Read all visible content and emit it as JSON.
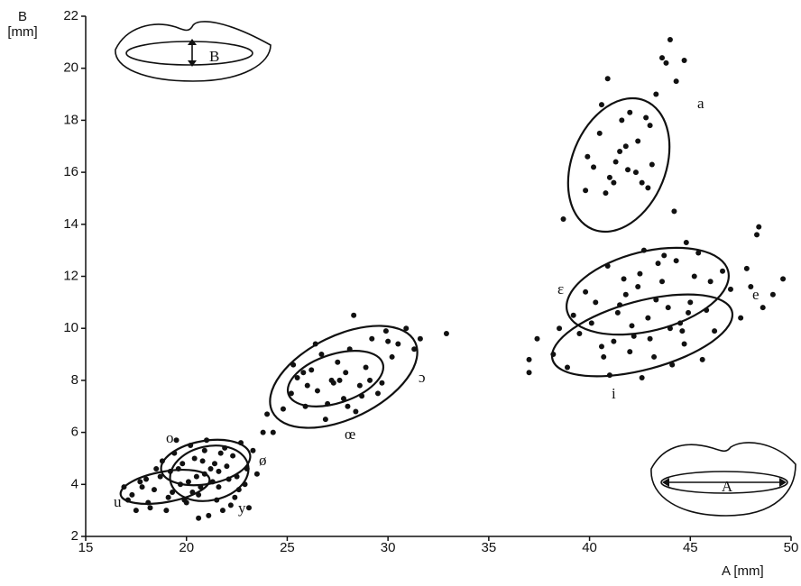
{
  "chart_data": {
    "type": "scatter",
    "xlabel": "A [mm]",
    "ylabel": "B [mm]",
    "color": "#111111",
    "xlim": [
      15,
      50
    ],
    "xticks": [
      15,
      20,
      25,
      30,
      35,
      40,
      45,
      50
    ],
    "ylim": [
      2,
      22
    ],
    "yticks": [
      2,
      4,
      6,
      8,
      10,
      12,
      14,
      16,
      18,
      20,
      22
    ],
    "annotations": [
      "a",
      "ε",
      "e",
      "i",
      "ɔ",
      "œ",
      "o",
      "ø",
      "u",
      "y",
      "B",
      "A"
    ],
    "x": [
      39.8,
      40.2,
      40.5,
      41.0,
      41.3,
      41.8,
      42.0,
      42.3,
      42.6,
      43.0,
      43.3,
      43.6,
      44.0,
      44.3,
      43.8,
      42.8,
      41.5,
      40.8,
      39.9,
      40.6,
      41.2,
      41.9,
      42.4,
      43.1,
      38.7,
      44.7,
      44.2,
      42.9,
      41.6,
      40.9,
      37.0,
      37.4,
      37.0,
      38.2,
      38.9,
      39.5,
      40.1,
      40.6,
      41.0,
      41.4,
      41.8,
      42.2,
      42.5,
      42.9,
      43.2,
      43.6,
      44.0,
      44.3,
      44.7,
      45.0,
      45.4,
      45.8,
      46.2,
      46.6,
      47.0,
      47.5,
      48.0,
      48.3,
      48.4,
      49.1,
      49.6,
      48.6,
      47.8,
      40.3,
      40.9,
      41.5,
      42.0,
      42.7,
      43.4,
      44.1,
      44.8,
      45.2,
      43.9,
      42.4,
      41.2,
      39.8,
      39.2,
      43.0,
      44.5,
      45.6,
      46.0,
      42.6,
      41.7,
      43.7,
      44.6,
      38.5,
      40.7,
      42.1,
      43.3,
      44.9,
      24.0,
      24.3,
      24.8,
      25.2,
      25.5,
      25.9,
      26.2,
      26.5,
      26.9,
      27.2,
      27.5,
      27.8,
      28.1,
      28.3,
      28.6,
      28.9,
      29.2,
      29.5,
      29.9,
      30.2,
      30.5,
      30.9,
      31.3,
      31.6,
      32.9,
      28.0,
      27.3,
      26.7,
      25.8,
      27.9,
      28.4,
      29.1,
      30.0,
      27.0,
      26.0,
      25.3,
      29.7,
      28.7,
      27.6,
      26.4,
      16.9,
      17.3,
      17.7,
      18.1,
      18.4,
      18.7,
      19.0,
      19.3,
      19.6,
      19.9,
      20.1,
      20.4,
      20.6,
      20.9,
      21.1,
      21.4,
      21.6,
      21.9,
      22.1,
      22.4,
      22.7,
      23.0,
      23.3,
      22.9,
      22.2,
      21.7,
      21.2,
      20.7,
      20.2,
      19.7,
      19.2,
      18.8,
      18.2,
      17.8,
      17.5,
      19.4,
      20.0,
      20.5,
      21.0,
      21.5,
      22.0,
      22.6,
      23.5,
      21.3,
      20.8,
      20.3,
      19.8,
      21.8,
      22.3,
      20.6,
      18.5,
      19.1,
      20.9,
      21.6,
      22.5,
      17.1,
      18.0,
      23.8,
      23.1,
      19.5
    ],
    "values": [
      15.3,
      16.2,
      17.5,
      15.8,
      16.4,
      17.0,
      18.3,
      16.0,
      15.6,
      17.8,
      19.0,
      20.4,
      21.1,
      19.5,
      20.2,
      18.1,
      16.8,
      15.2,
      16.6,
      18.6,
      15.6,
      16.1,
      17.2,
      16.3,
      14.2,
      20.3,
      14.5,
      15.4,
      18.0,
      19.6,
      8.8,
      9.6,
      8.3,
      9.0,
      8.5,
      9.8,
      10.2,
      9.3,
      8.2,
      10.6,
      11.3,
      9.7,
      12.1,
      10.4,
      8.9,
      11.8,
      10.0,
      12.6,
      9.4,
      11.0,
      12.9,
      10.7,
      9.9,
      12.2,
      11.5,
      10.4,
      11.6,
      13.6,
      13.9,
      11.3,
      11.9,
      10.8,
      12.3,
      11.0,
      12.4,
      10.9,
      9.1,
      13.0,
      12.5,
      8.6,
      13.3,
      12.0,
      10.8,
      11.6,
      9.5,
      11.4,
      10.5,
      9.6,
      10.2,
      8.8,
      11.8,
      8.1,
      11.9,
      12.8,
      9.9,
      10.0,
      8.9,
      10.1,
      11.1,
      10.6,
      6.7,
      6.0,
      6.9,
      7.5,
      8.1,
      7.0,
      8.4,
      7.6,
      6.5,
      8.0,
      8.7,
      7.3,
      9.2,
      10.5,
      7.8,
      8.5,
      9.6,
      7.5,
      9.9,
      8.9,
      9.4,
      10.0,
      9.2,
      9.6,
      9.8,
      7.0,
      7.9,
      9.0,
      8.3,
      8.3,
      6.8,
      8.0,
      9.5,
      7.1,
      7.8,
      8.6,
      7.9,
      7.4,
      8.0,
      9.4,
      3.9,
      3.6,
      4.1,
      3.3,
      3.8,
      4.3,
      3.0,
      3.7,
      4.6,
      3.4,
      4.1,
      5.0,
      3.6,
      4.4,
      2.8,
      4.8,
      3.9,
      5.4,
      4.2,
      3.5,
      5.6,
      4.6,
      5.3,
      4.0,
      3.2,
      5.2,
      4.6,
      3.9,
      5.5,
      4.0,
      4.5,
      4.9,
      3.1,
      3.9,
      3.0,
      5.2,
      3.3,
      4.3,
      5.7,
      3.4,
      4.7,
      3.8,
      4.4,
      4.1,
      4.9,
      3.7,
      4.8,
      3.0,
      5.1,
      2.7,
      4.6,
      3.5,
      5.3,
      4.5,
      4.3,
      3.4,
      4.2,
      6.0,
      3.1,
      5.7
    ]
  }
}
